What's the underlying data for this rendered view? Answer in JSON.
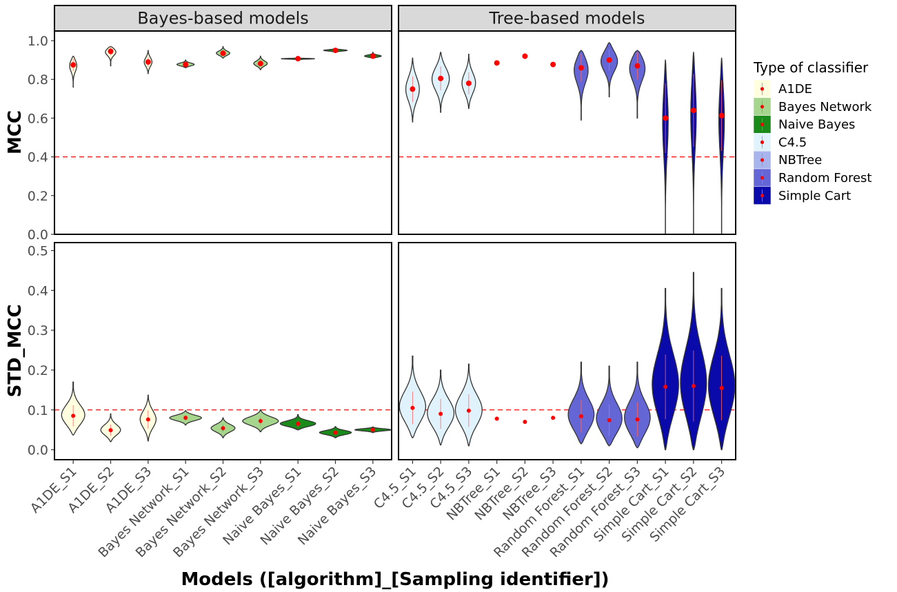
{
  "chart_data": {
    "type": "violin",
    "xlabel": "Models ([algorithm]_[Sampling identifier])",
    "facets": [
      {
        "label": "Bayes-based models",
        "categories": [
          "A1DE_S1",
          "A1DE_S2",
          "A1DE_S3",
          "Bayes Network_S1",
          "Bayes Network_S2",
          "Bayes Network_S3",
          "Naive Bayes_S1",
          "Naive Bayes_S2",
          "Naive Bayes_S3"
        ]
      },
      {
        "label": "Tree-based models",
        "categories": [
          "C4.5_S1",
          "C4.5_S2",
          "C4.5_S3",
          "NBTree_S1",
          "NBTree_S2",
          "NBTree_S3",
          "Random Forest_S1",
          "Random Forest_S2",
          "Random Forest_S3",
          "Simple Cart_S1",
          "Simple Cart_S2",
          "Simple Cart_S3"
        ]
      }
    ],
    "rows": [
      {
        "ylabel": "MCC",
        "ylim": [
          0,
          1.05
        ],
        "yticks": [
          "0.0",
          "0.2",
          "0.4",
          "0.6",
          "0.8",
          "1.0"
        ],
        "threshold": 0.4
      },
      {
        "ylabel": "STD_MCC",
        "ylim": [
          -0.025,
          0.52
        ],
        "yticks": [
          "0.0",
          "0.1",
          "0.2",
          "0.3",
          "0.4",
          "0.5"
        ],
        "threshold": 0.1
      }
    ],
    "legend": {
      "title": "Type of classifier",
      "position": "right",
      "items": [
        {
          "name": "A1DE",
          "color": "#ffffe0"
        },
        {
          "name": "Bayes Network",
          "color": "#a6d68e"
        },
        {
          "name": "Naive Bayes",
          "color": "#1a8a1a"
        },
        {
          "name": "C4.5",
          "color": "#e0f2fb"
        },
        {
          "name": "NBTree",
          "color": "#a8b4ec"
        },
        {
          "name": "Random Forest",
          "color": "#6466d6"
        },
        {
          "name": "Simple Cart",
          "color": "#0a0aaa"
        }
      ]
    },
    "series": {
      "MCC": [
        [
          {
            "cls": "A1DE",
            "min": 0.76,
            "max": 0.92,
            "mean": 0.875,
            "wmax": 0.02
          },
          {
            "cls": "A1DE",
            "min": 0.87,
            "max": 0.97,
            "mean": 0.945,
            "wmax": 0.03
          },
          {
            "cls": "A1DE",
            "min": 0.83,
            "max": 0.95,
            "mean": 0.89,
            "wmax": 0.02
          },
          {
            "cls": "Bayes Network",
            "min": 0.86,
            "max": 0.9,
            "mean": 0.877,
            "wmax": 0.045
          },
          {
            "cls": "Bayes Network",
            "min": 0.91,
            "max": 0.97,
            "mean": 0.935,
            "wmax": 0.035
          },
          {
            "cls": "Bayes Network",
            "min": 0.85,
            "max": 0.92,
            "mean": 0.882,
            "wmax": 0.035
          },
          {
            "cls": "Naive Bayes",
            "min": 0.9,
            "max": 0.91,
            "mean": 0.907,
            "wmax": 0.18
          },
          {
            "cls": "Naive Bayes",
            "min": 0.94,
            "max": 0.96,
            "mean": 0.95,
            "wmax": 0.06
          },
          {
            "cls": "Naive Bayes",
            "min": 0.91,
            "max": 0.94,
            "mean": 0.92,
            "wmax": 0.045
          }
        ],
        [
          {
            "cls": "C4.5",
            "min": 0.58,
            "max": 0.91,
            "mean": 0.75,
            "wmax": 0.035
          },
          {
            "cls": "C4.5",
            "min": 0.63,
            "max": 0.94,
            "mean": 0.805,
            "wmax": 0.045
          },
          {
            "cls": "C4.5",
            "min": 0.65,
            "max": 0.93,
            "mean": 0.78,
            "wmax": 0.035
          },
          {
            "cls": "NBTree",
            "min": 0.88,
            "max": 0.88,
            "mean": 0.885,
            "wmax": 0
          },
          {
            "cls": "NBTree",
            "min": 0.92,
            "max": 0.92,
            "mean": 0.92,
            "wmax": 0
          },
          {
            "cls": "NBTree",
            "min": 0.88,
            "max": 0.88,
            "mean": 0.877,
            "wmax": 0
          },
          {
            "cls": "Random Forest",
            "min": 0.59,
            "max": 0.95,
            "mean": 0.86,
            "wmax": 0.04
          },
          {
            "cls": "Random Forest",
            "min": 0.71,
            "max": 0.99,
            "mean": 0.9,
            "wmax": 0.045
          },
          {
            "cls": "Random Forest",
            "min": 0.6,
            "max": 0.95,
            "mean": 0.87,
            "wmax": 0.045
          },
          {
            "cls": "Simple Cart",
            "min": 0.0,
            "max": 0.9,
            "mean": 0.6,
            "wmax": 0.015
          },
          {
            "cls": "Simple Cart",
            "min": 0.0,
            "max": 0.94,
            "mean": 0.64,
            "wmax": 0.015
          },
          {
            "cls": "Simple Cart",
            "min": 0.0,
            "max": 0.91,
            "mean": 0.613,
            "wmax": 0.015
          }
        ]
      ],
      "STD_MCC": [
        [
          {
            "cls": "A1DE",
            "min": 0.037,
            "max": 0.17,
            "mean": 0.085,
            "wmax": 0.03
          },
          {
            "cls": "A1DE",
            "min": 0.02,
            "max": 0.09,
            "mean": 0.049,
            "wmax": 0.025
          },
          {
            "cls": "A1DE",
            "min": 0.022,
            "max": 0.137,
            "mean": 0.076,
            "wmax": 0.02
          },
          {
            "cls": "Bayes Network",
            "min": 0.062,
            "max": 0.098,
            "mean": 0.08,
            "wmax": 0.04
          },
          {
            "cls": "Bayes Network",
            "min": 0.03,
            "max": 0.08,
            "mean": 0.054,
            "wmax": 0.03
          },
          {
            "cls": "Bayes Network",
            "min": 0.045,
            "max": 0.1,
            "mean": 0.072,
            "wmax": 0.045
          },
          {
            "cls": "Naive Bayes",
            "min": 0.05,
            "max": 0.088,
            "mean": 0.065,
            "wmax": 0.05
          },
          {
            "cls": "Naive Bayes",
            "min": 0.03,
            "max": 0.058,
            "mean": 0.043,
            "wmax": 0.04
          },
          {
            "cls": "Naive Bayes",
            "min": 0.043,
            "max": 0.057,
            "mean": 0.05,
            "wmax": 0.075
          }
        ],
        [
          {
            "cls": "C4.5",
            "min": 0.03,
            "max": 0.235,
            "mean": 0.105,
            "wmax": 0.05
          },
          {
            "cls": "C4.5",
            "min": 0.012,
            "max": 0.2,
            "mean": 0.09,
            "wmax": 0.045
          },
          {
            "cls": "C4.5",
            "min": 0.01,
            "max": 0.215,
            "mean": 0.098,
            "wmax": 0.045
          },
          {
            "cls": "NBTree",
            "min": 0.078,
            "max": 0.078,
            "mean": 0.078,
            "wmax": 0
          },
          {
            "cls": "NBTree",
            "min": 0.07,
            "max": 0.07,
            "mean": 0.07,
            "wmax": 0
          },
          {
            "cls": "NBTree",
            "min": 0.08,
            "max": 0.08,
            "mean": 0.08,
            "wmax": 0
          },
          {
            "cls": "Random Forest",
            "min": 0.015,
            "max": 0.22,
            "mean": 0.084,
            "wmax": 0.055
          },
          {
            "cls": "Random Forest",
            "min": 0.01,
            "max": 0.21,
            "mean": 0.074,
            "wmax": 0.055
          },
          {
            "cls": "Random Forest",
            "min": 0.005,
            "max": 0.22,
            "mean": 0.076,
            "wmax": 0.055
          },
          {
            "cls": "Simple Cart",
            "min": 0.0,
            "max": 0.405,
            "mean": 0.158,
            "wmax": 0.04
          },
          {
            "cls": "Simple Cart",
            "min": 0.0,
            "max": 0.445,
            "mean": 0.16,
            "wmax": 0.035
          },
          {
            "cls": "Simple Cart",
            "min": 0.0,
            "max": 0.405,
            "mean": 0.155,
            "wmax": 0.035
          }
        ]
      ]
    }
  }
}
